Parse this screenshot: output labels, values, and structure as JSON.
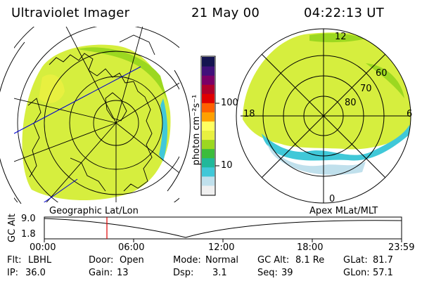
{
  "header": {
    "instrument": "Ultraviolet Imager",
    "date": "21 May 00",
    "time": "04:22:13 UT"
  },
  "colorbar": {
    "unit_label": "photon cm⁻²s⁻¹",
    "ticks": [
      "100",
      "10"
    ],
    "colors": [
      "#f0f0f0",
      "#c0e0ec",
      "#40c8d8",
      "#20b89a",
      "#3cbc3c",
      "#9cd820",
      "#e8f040",
      "#ffff60",
      "#ffa000",
      "#ff6000",
      "#e00000",
      "#b0002a",
      "#7a0066",
      "#40107a",
      "#141450"
    ]
  },
  "geo_panel": {
    "label": "Geographic Lat/Lon"
  },
  "apex_panel": {
    "label": "Apex MLat/MLT",
    "mlt_labels": {
      "top": "12",
      "left": "18",
      "right": "6",
      "bottom": "0"
    },
    "lat_labels": [
      "60",
      "70",
      "80"
    ]
  },
  "altitude_plot": {
    "ylabel": "GC Alt",
    "yticks": [
      "9.0",
      "1.8"
    ],
    "xticks": [
      "00:00",
      "06:00",
      "12:00",
      "18:00",
      "23:59"
    ],
    "marker_color": "#e00000"
  },
  "status": {
    "flt_label": "Flt:",
    "flt_value": "LBHL",
    "ip_label": "IP:",
    "ip_value": "36.0",
    "door_label": "Door:",
    "door_value": "Open",
    "gain_label": "Gain:",
    "gain_value": "13",
    "mode_label": "Mode:",
    "mode_value": "Normal",
    "dsp_label": "Dsp:",
    "dsp_value": "3.1",
    "gcalt_label": "GC Alt:",
    "gcalt_value": "8.1 Re",
    "seq_label": "Seq:",
    "seq_value": "39",
    "glat_label": "GLat:",
    "glat_value": "81.7",
    "glon_label": "GLon:",
    "glon_value": "57.1"
  }
}
